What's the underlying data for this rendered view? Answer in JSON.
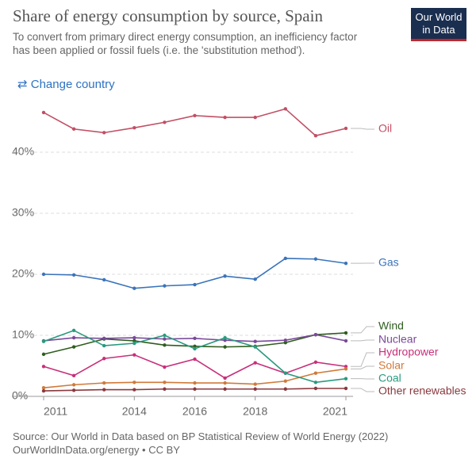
{
  "header": {
    "title": "Share of energy consumption by source, Spain",
    "subtitle": "To convert from primary direct energy consumption, an inefficiency factor has been applied or fossil fuels (i.e. the 'substitution method').",
    "logo": [
      "Our World",
      "in Data"
    ],
    "button": "Change country"
  },
  "chart_data": {
    "type": "line",
    "x": [
      2011,
      2012,
      2013,
      2014,
      2015,
      2016,
      2017,
      2018,
      2019,
      2020,
      2021
    ],
    "xlim": [
      2011,
      2021
    ],
    "xticks": [
      2011,
      2014,
      2016,
      2018,
      2021
    ],
    "ylim": [
      0,
      48
    ],
    "yticks": [
      {
        "value": 0,
        "label": "0%"
      },
      {
        "value": 10,
        "label": "10%"
      },
      {
        "value": 20,
        "label": "20%"
      },
      {
        "value": 30,
        "label": "30%"
      },
      {
        "value": 40,
        "label": "40%"
      }
    ],
    "grid": true,
    "series": [
      {
        "name": "Oil",
        "color": "#c15065",
        "values": [
          46.5,
          43.8,
          43.2,
          44.0,
          44.9,
          46.0,
          45.7,
          45.7,
          47.1,
          42.7,
          43.9
        ]
      },
      {
        "name": "Gas",
        "color": "#3a74bb",
        "values": [
          20.0,
          19.9,
          19.1,
          17.7,
          18.1,
          18.3,
          19.7,
          19.2,
          22.6,
          22.5,
          21.8
        ]
      },
      {
        "name": "Wind",
        "color": "#2f5d1f",
        "values": [
          6.9,
          8.1,
          9.4,
          9.1,
          8.4,
          8.2,
          8.1,
          8.2,
          8.8,
          10.1,
          10.4
        ]
      },
      {
        "name": "Nuclear",
        "color": "#7a4a9a",
        "values": [
          9.1,
          9.6,
          9.5,
          9.6,
          9.4,
          9.5,
          9.2,
          9.0,
          9.2,
          10.1,
          9.1
        ]
      },
      {
        "name": "Hydropower",
        "color": "#c8307a",
        "values": [
          4.9,
          3.4,
          6.2,
          6.8,
          4.8,
          6.1,
          3.0,
          5.5,
          3.8,
          5.6,
          4.9
        ]
      },
      {
        "name": "Solar",
        "color": "#d07a3a",
        "values": [
          1.4,
          1.9,
          2.2,
          2.3,
          2.3,
          2.2,
          2.2,
          2.0,
          2.5,
          3.8,
          4.5
        ]
      },
      {
        "name": "Coal",
        "color": "#2a9a7f",
        "values": [
          9.0,
          10.8,
          8.3,
          8.7,
          10.0,
          7.8,
          9.6,
          8.1,
          3.8,
          2.3,
          2.9
        ]
      },
      {
        "name": "Other renewables",
        "color": "#8a3a3f",
        "values": [
          0.9,
          1.0,
          1.1,
          1.1,
          1.2,
          1.2,
          1.2,
          1.2,
          1.2,
          1.3,
          1.3
        ]
      }
    ]
  },
  "source": [
    "Source: Our World in Data based on BP Statistical Review of World Energy (2022)",
    "OurWorldInData.org/energy • CC BY"
  ]
}
